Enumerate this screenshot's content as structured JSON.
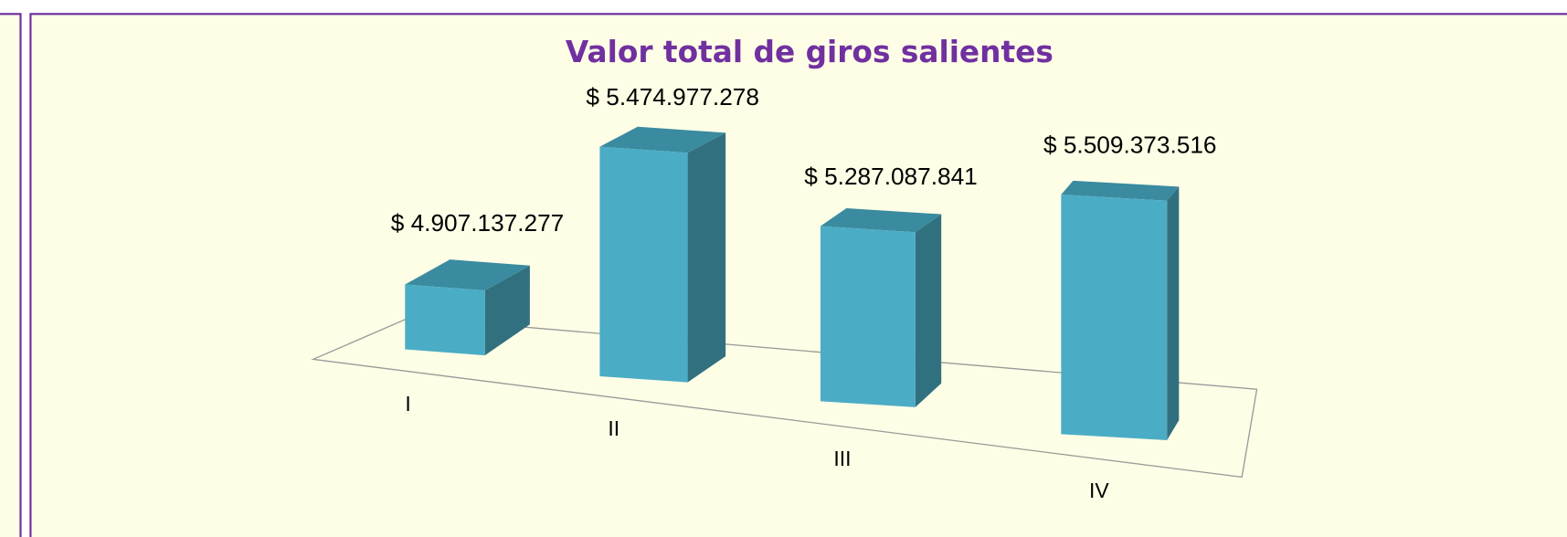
{
  "chart_data": {
    "type": "bar3d",
    "title": "Valor total de giros salientes",
    "categories": [
      "I",
      "II",
      "III",
      "IV"
    ],
    "values": [
      4907137277,
      5474977278,
      5287087841,
      5509373516
    ],
    "value_labels": [
      "$ 4.907.137.277",
      "$ 5.474.977.278",
      "$ 5.287.087.841",
      "$ 5.509.373.516"
    ],
    "color": "#4bacc6"
  }
}
